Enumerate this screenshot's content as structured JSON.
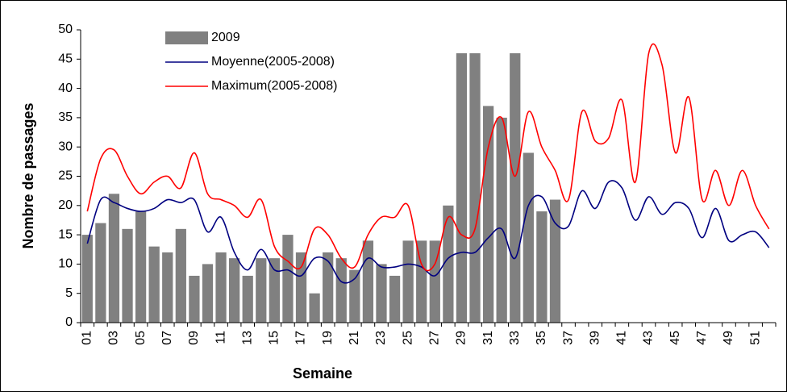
{
  "chart_data": {
    "type": "bar",
    "x_label": "Semaine",
    "y_label": "Nombre de passages",
    "categories": [
      "01",
      null,
      "03",
      null,
      "05",
      null,
      "07",
      null,
      "09",
      null,
      "11",
      null,
      "13",
      null,
      "15",
      null,
      "17",
      null,
      "19",
      null,
      "21",
      null,
      "23",
      null,
      "25",
      null,
      "27",
      null,
      "29",
      null,
      "31",
      null,
      "33",
      null,
      "35",
      null,
      "37",
      null,
      "39",
      null,
      "41",
      null,
      "43",
      null,
      "45",
      null,
      "47",
      null,
      "49",
      null,
      "51",
      null
    ],
    "series": [
      {
        "name": "2009",
        "type": "bar",
        "color": "#808080",
        "values": [
          15,
          17,
          22,
          16,
          19,
          13,
          12,
          16,
          8,
          10,
          12,
          11,
          8,
          11,
          11,
          15,
          12,
          5,
          12,
          11,
          9,
          14,
          10,
          8,
          14,
          14,
          14,
          20,
          46,
          46,
          37,
          35,
          46,
          29,
          19,
          21,
          null,
          null,
          null,
          null,
          null,
          null,
          null,
          null,
          null,
          null,
          null,
          null,
          null,
          null,
          null,
          null
        ]
      },
      {
        "name": "Moyenne(2005-2008)",
        "type": "line",
        "color": "#000080",
        "values": [
          13.5,
          21,
          20.5,
          19.5,
          19,
          19.5,
          21,
          20.5,
          21,
          15.5,
          18,
          12,
          9,
          12.5,
          9,
          9,
          8,
          11,
          10.5,
          7,
          7.5,
          11,
          9.5,
          9.5,
          10,
          9.5,
          8,
          11,
          12,
          12,
          14.5,
          16,
          11,
          20,
          21.5,
          17,
          16.5,
          22.5,
          19.5,
          24,
          23,
          17.5,
          21.5,
          18.5,
          20.5,
          19.5,
          14.5,
          19.5,
          14,
          15,
          15.5,
          12.8
        ]
      },
      {
        "name": "Maximum(2005-2008)",
        "type": "line",
        "color": "#ff0000",
        "values": [
          19,
          28,
          29.5,
          25,
          22,
          24,
          25,
          23,
          29,
          22,
          21,
          20,
          18,
          21,
          13,
          10.5,
          9.5,
          16,
          15,
          11,
          9.5,
          15,
          18,
          18,
          20,
          10,
          10,
          18,
          15,
          16,
          30,
          35,
          25,
          36,
          30,
          26,
          21,
          36,
          31,
          31.5,
          38,
          24,
          46,
          44,
          29,
          38.5,
          21,
          26,
          20,
          26,
          20,
          16
        ]
      }
    ],
    "ylim": [
      0,
      50
    ],
    "yticks": [
      0,
      5,
      10,
      15,
      20,
      25,
      30,
      35,
      40,
      45,
      50
    ],
    "grid": false
  }
}
